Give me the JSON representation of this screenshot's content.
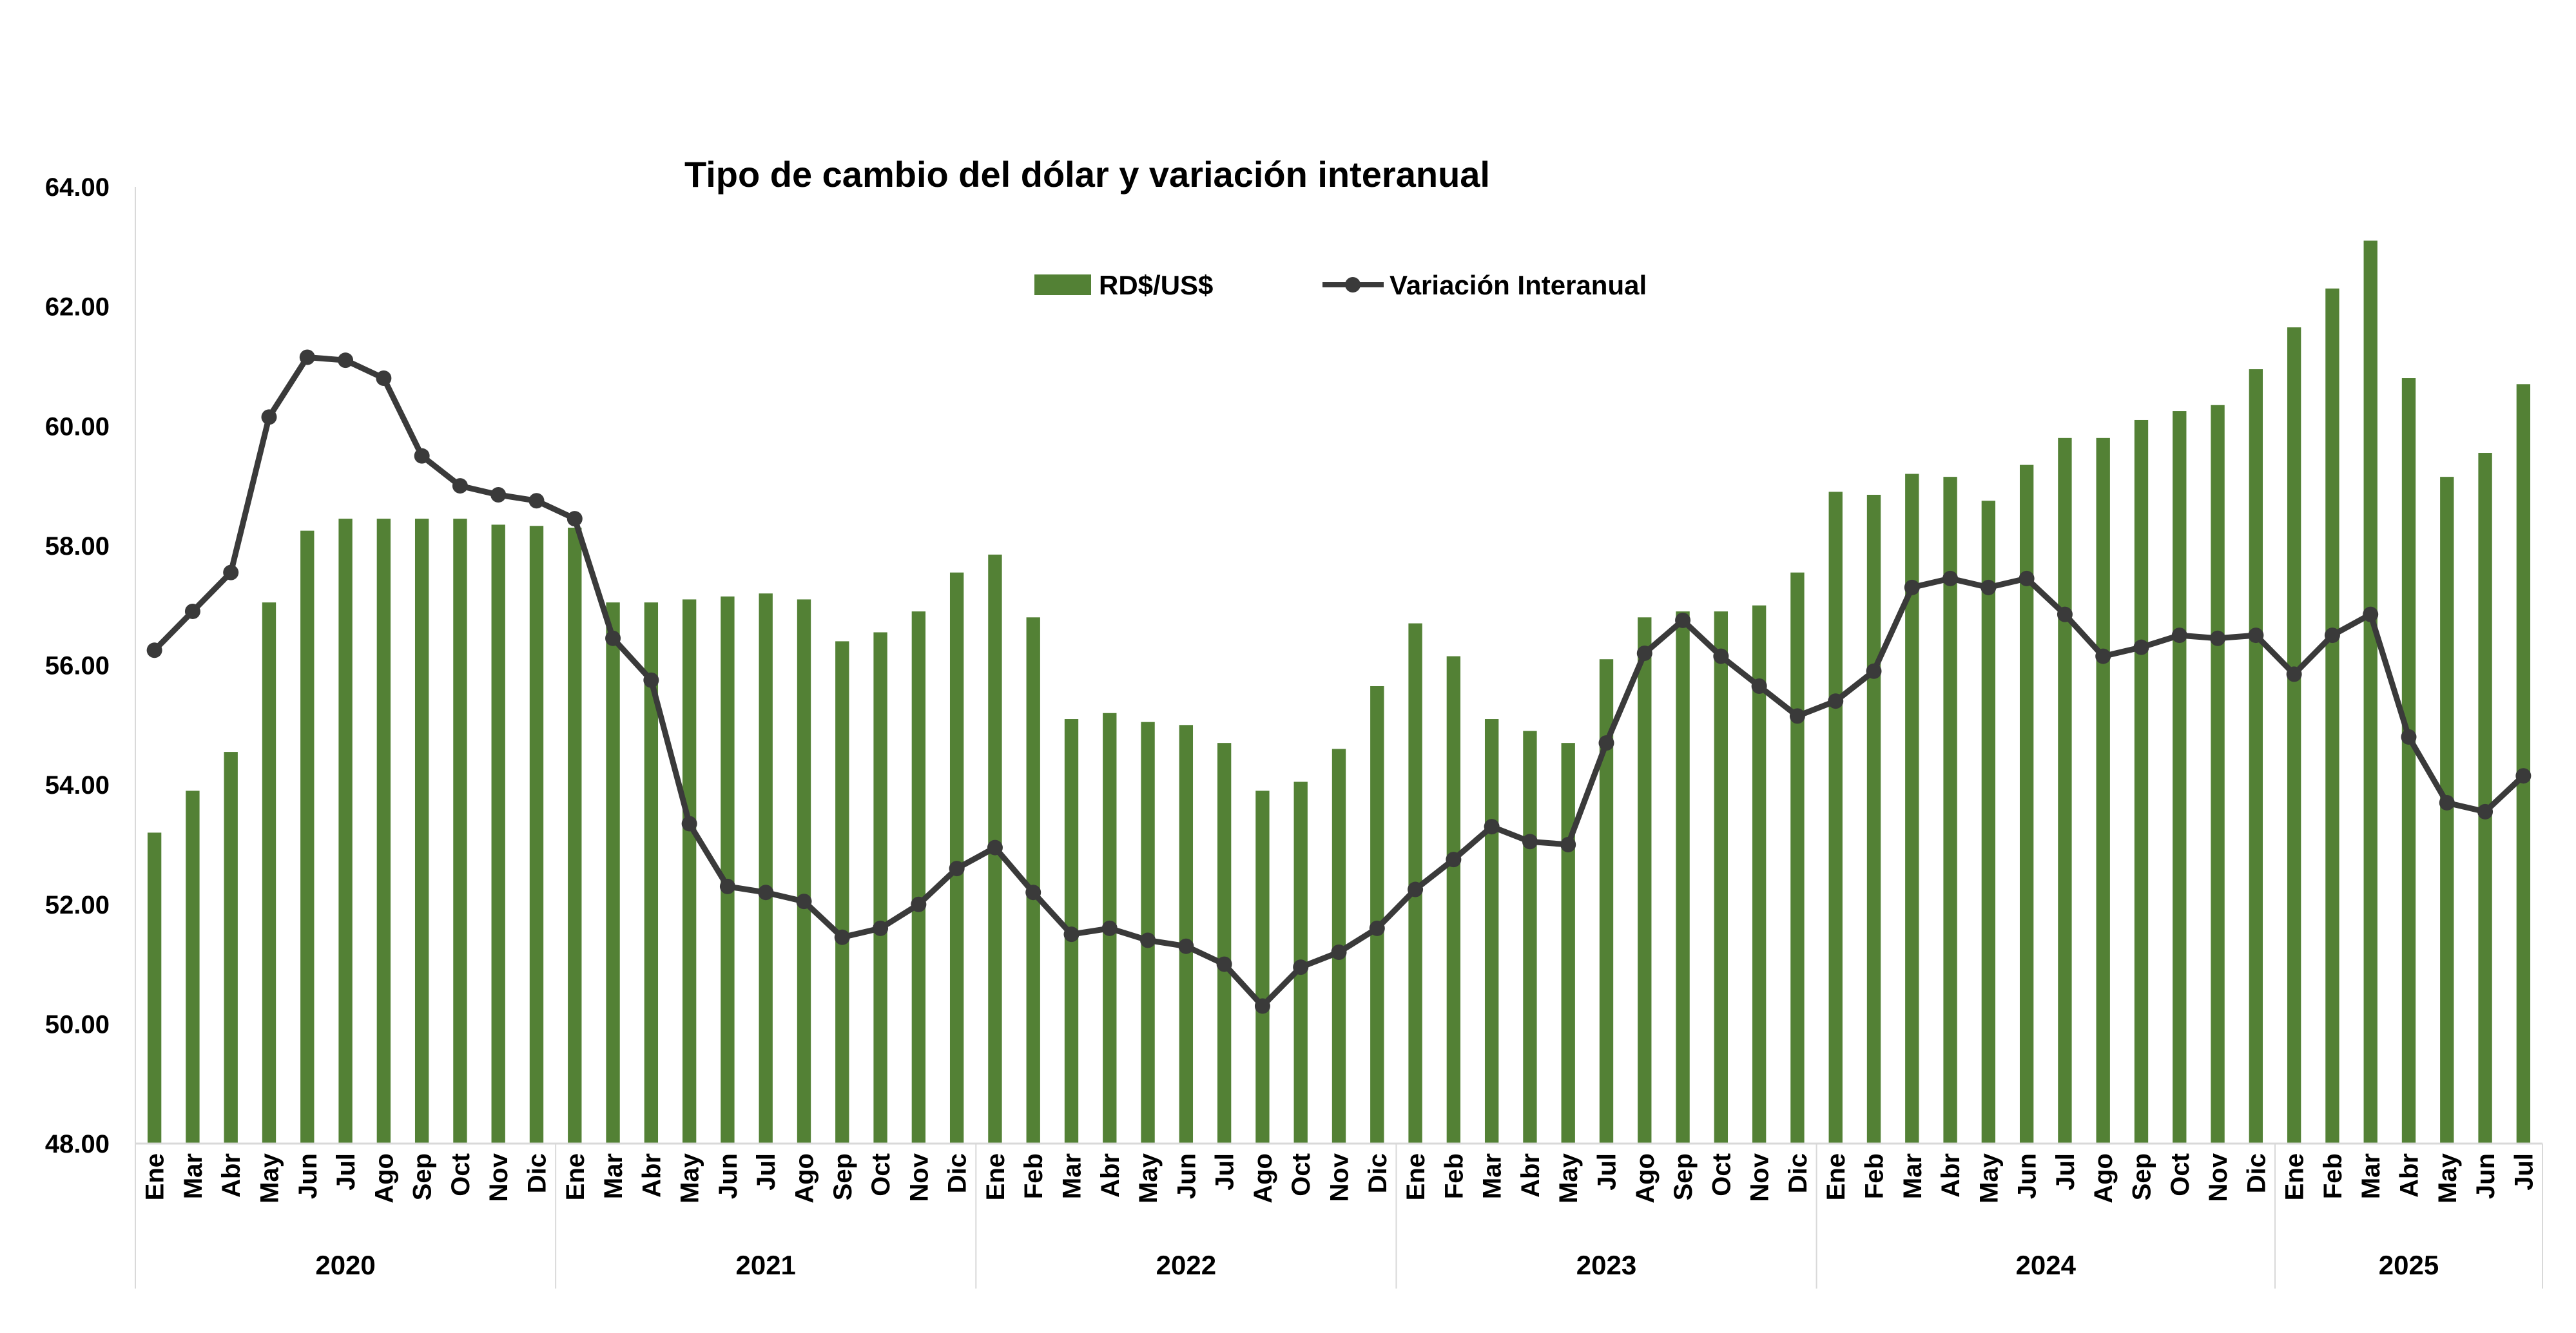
{
  "chart_data": {
    "type": "bar",
    "title": "Tipo de cambio del dólar y variación interanual",
    "ylim": [
      48,
      64
    ],
    "yticks": [
      "48.00",
      "50.00",
      "52.00",
      "54.00",
      "56.00",
      "58.00",
      "60.00",
      "62.00",
      "64.00"
    ],
    "legend": {
      "placement": "top-center",
      "entries": [
        "RD$/US$",
        "Variación Interanual"
      ]
    },
    "colors": {
      "bar": "#538135",
      "line": "#3a3a3a"
    },
    "categories": [
      "Ene",
      "Mar",
      "Abr",
      "May",
      "Jun",
      "Jul",
      "Ago",
      "Sep",
      "Oct",
      "Nov",
      "Dic",
      "Ene",
      "Mar",
      "Abr",
      "May",
      "Jun",
      "Jul",
      "Ago",
      "Sep",
      "Oct",
      "Nov",
      "Dic",
      "Ene",
      "Feb",
      "Mar",
      "Abr",
      "May",
      "Jun",
      "Jul",
      "Ago",
      "Oct",
      "Nov",
      "Dic",
      "Ene",
      "Feb",
      "Mar",
      "Abr",
      "May",
      "Jul",
      "Ago",
      "Sep",
      "Oct",
      "Nov",
      "Dic",
      "Ene",
      "Feb",
      "Mar",
      "Abr",
      "May",
      "Jun",
      "Jul",
      "Ago",
      "Sep",
      "Oct",
      "Nov",
      "Dic",
      "Ene",
      "Feb",
      "Mar",
      "Abr",
      "May",
      "Jun",
      "Jul"
    ],
    "groups": [
      {
        "label": "2020",
        "count": 11
      },
      {
        "label": "2021",
        "count": 11
      },
      {
        "label": "2022",
        "count": 11
      },
      {
        "label": "2023",
        "count": 11
      },
      {
        "label": "2024",
        "count": 12
      },
      {
        "label": "2025",
        "count": 7
      }
    ],
    "series": [
      {
        "name": "RD$/US$",
        "type": "bar",
        "values": [
          53.2,
          53.9,
          54.55,
          57.05,
          58.25,
          58.45,
          58.45,
          58.45,
          58.45,
          58.35,
          58.33,
          58.3,
          57.05,
          57.05,
          57.1,
          57.15,
          57.2,
          57.1,
          56.4,
          56.55,
          56.9,
          57.55,
          57.85,
          56.8,
          55.1,
          55.2,
          55.05,
          55.0,
          54.7,
          53.9,
          54.05,
          54.6,
          55.65,
          56.7,
          56.15,
          55.1,
          54.9,
          54.7,
          56.1,
          56.8,
          56.9,
          56.9,
          57.0,
          57.55,
          58.9,
          58.85,
          59.2,
          59.15,
          58.75,
          59.35,
          59.8,
          59.8,
          60.1,
          60.25,
          60.35,
          60.95,
          61.65,
          62.3,
          63.1,
          60.8,
          59.15,
          59.55,
          60.7
        ]
      },
      {
        "name": "Variación Interanual",
        "type": "line",
        "values": [
          56.25,
          56.9,
          57.55,
          60.15,
          61.15,
          61.1,
          60.8,
          59.5,
          59.0,
          58.85,
          58.75,
          58.45,
          56.45,
          55.75,
          53.35,
          52.3,
          52.2,
          52.05,
          51.45,
          51.6,
          52.0,
          52.6,
          52.95,
          52.2,
          51.5,
          51.6,
          51.4,
          51.3,
          51.0,
          50.3,
          50.95,
          51.2,
          51.6,
          52.25,
          52.75,
          53.3,
          53.05,
          53.0,
          54.7,
          56.2,
          56.75,
          56.15,
          55.65,
          55.15,
          55.4,
          55.9,
          57.3,
          57.45,
          57.3,
          57.45,
          56.85,
          56.15,
          56.3,
          56.5,
          56.45,
          56.5,
          55.85,
          56.5,
          56.85,
          54.8,
          53.7,
          53.55,
          54.15
        ]
      }
    ]
  }
}
